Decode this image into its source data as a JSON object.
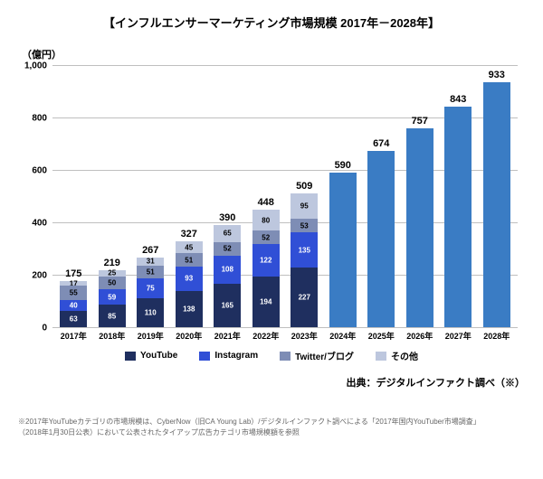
{
  "title": "【インフルエンサーマーケティング市場規模 2017年－2028年】",
  "ylabel": "（億円）",
  "ylim": [
    0,
    1000
  ],
  "ytick_step": 200,
  "yticks": [
    "1,000",
    "800",
    "600",
    "400",
    "200",
    "0"
  ],
  "colors": {
    "youtube": "#1f2f5f",
    "instagram": "#304fd6",
    "twitter": "#7e8db5",
    "other": "#bdc7de",
    "projected": "#3a7cc4"
  },
  "legend": [
    {
      "key": "youtube",
      "label": "YouTube"
    },
    {
      "key": "instagram",
      "label": "Instagram"
    },
    {
      "key": "twitter",
      "label": "Twitter/ブログ"
    },
    {
      "key": "other",
      "label": "その他"
    }
  ],
  "categories": [
    "2017年",
    "2018年",
    "2019年",
    "2020年",
    "2021年",
    "2022年",
    "2023年",
    "2024年",
    "2025年",
    "2026年",
    "2027年",
    "2028年"
  ],
  "stacked": [
    {
      "total": 175,
      "segs": [
        {
          "k": "youtube",
          "v": 63
        },
        {
          "k": "instagram",
          "v": 40
        },
        {
          "k": "twitter",
          "v": 55
        },
        {
          "k": "other",
          "v": 17
        }
      ]
    },
    {
      "total": 219,
      "segs": [
        {
          "k": "youtube",
          "v": 85
        },
        {
          "k": "instagram",
          "v": 59
        },
        {
          "k": "twitter",
          "v": 50
        },
        {
          "k": "other",
          "v": 25
        }
      ]
    },
    {
      "total": 267,
      "segs": [
        {
          "k": "youtube",
          "v": 110
        },
        {
          "k": "instagram",
          "v": 75
        },
        {
          "k": "twitter",
          "v": 51
        },
        {
          "k": "other",
          "v": 31
        }
      ]
    },
    {
      "total": 327,
      "segs": [
        {
          "k": "youtube",
          "v": 138
        },
        {
          "k": "instagram",
          "v": 93
        },
        {
          "k": "twitter",
          "v": 51
        },
        {
          "k": "other",
          "v": 45
        }
      ]
    },
    {
      "total": 390,
      "segs": [
        {
          "k": "youtube",
          "v": 165
        },
        {
          "k": "instagram",
          "v": 108
        },
        {
          "k": "twitter",
          "v": 52
        },
        {
          "k": "other",
          "v": 65
        }
      ]
    },
    {
      "total": 448,
      "segs": [
        {
          "k": "youtube",
          "v": 194
        },
        {
          "k": "instagram",
          "v": 122
        },
        {
          "k": "twitter",
          "v": 52
        },
        {
          "k": "other",
          "v": 80
        }
      ]
    },
    {
      "total": 509,
      "segs": [
        {
          "k": "youtube",
          "v": 227
        },
        {
          "k": "instagram",
          "v": 135
        },
        {
          "k": "twitter",
          "v": 53
        },
        {
          "k": "other",
          "v": 95
        }
      ]
    }
  ],
  "projected": [
    590,
    674,
    757,
    843,
    933
  ],
  "source": "出典：デジタルインファクト調べ（※）",
  "note1": "※2017年YouTubeカテゴリの市場規模は、CyberNow（旧CA Young Lab）/デジタルインファクト調べによる「2017年国内YouTuber市場調査」",
  "note2": "（2018年1月30日公表）において公表されたタイアップ広告カテゴリ市場規模額を参照"
}
